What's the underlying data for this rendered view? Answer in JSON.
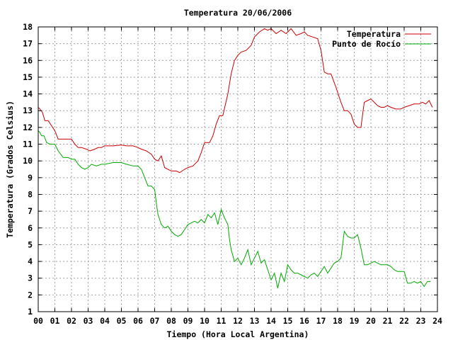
{
  "chart_data": {
    "type": "line",
    "title": "Temperatura 20/06/2006",
    "xlabel": "Tiempo (Hora Local Argentina)",
    "ylabel": "Temperatura (Grados Celsius)",
    "xlim": [
      0,
      24
    ],
    "ylim": [
      1,
      18
    ],
    "x_ticks": [
      "00",
      "01",
      "02",
      "03",
      "04",
      "05",
      "06",
      "07",
      "08",
      "09",
      "10",
      "11",
      "12",
      "13",
      "14",
      "15",
      "16",
      "17",
      "18",
      "19",
      "20",
      "21",
      "22",
      "23",
      "24"
    ],
    "y_ticks": [
      1,
      2,
      3,
      4,
      5,
      6,
      7,
      8,
      9,
      10,
      11,
      12,
      13,
      14,
      15,
      16,
      17,
      18
    ],
    "grid": true,
    "legend_position": "top-right",
    "series": [
      {
        "name": "Temperatura",
        "color": "#cc0000",
        "x": [
          0.0,
          0.1,
          0.25,
          0.4,
          0.6,
          1.0,
          1.2,
          1.5,
          2.0,
          2.2,
          2.4,
          2.6,
          2.9,
          3.1,
          3.4,
          3.6,
          3.8,
          4.0,
          4.5,
          5.0,
          5.3,
          5.7,
          6.0,
          6.2,
          6.5,
          6.8,
          7.0,
          7.2,
          7.4,
          7.6,
          8.0,
          8.3,
          8.5,
          8.8,
          9.0,
          9.3,
          9.6,
          9.8,
          10.0,
          10.3,
          10.5,
          10.7,
          10.9,
          11.1,
          11.4,
          11.6,
          11.8,
          12.0,
          12.2,
          12.5,
          12.8,
          13.0,
          13.3,
          13.6,
          13.8,
          14.0,
          14.3,
          14.6,
          14.9,
          15.2,
          15.5,
          15.8,
          16.0,
          16.2,
          16.5,
          16.8,
          17.0,
          17.2,
          17.4,
          17.6,
          17.9,
          18.2,
          18.4,
          18.6,
          18.8,
          19.0,
          19.2,
          19.4,
          19.6,
          19.8,
          20.0,
          20.2,
          20.4,
          20.6,
          20.8,
          21.0,
          21.2,
          21.5,
          21.8,
          22.0,
          22.3,
          22.6,
          22.9,
          23.1,
          23.3,
          23.5,
          23.7
        ],
        "values": [
          13.2,
          13.1,
          12.9,
          12.4,
          12.4,
          11.8,
          11.3,
          11.3,
          11.3,
          11.0,
          10.8,
          10.8,
          10.7,
          10.6,
          10.7,
          10.8,
          10.8,
          10.9,
          10.9,
          10.95,
          10.9,
          10.9,
          10.8,
          10.7,
          10.6,
          10.4,
          10.1,
          10.0,
          10.3,
          9.6,
          9.4,
          9.4,
          9.3,
          9.5,
          9.6,
          9.7,
          10.0,
          10.5,
          11.1,
          11.1,
          11.5,
          12.2,
          12.7,
          12.7,
          14.0,
          15.2,
          16.0,
          16.3,
          16.5,
          16.6,
          16.9,
          17.4,
          17.7,
          17.9,
          17.8,
          17.9,
          17.6,
          17.8,
          17.6,
          17.9,
          17.5,
          17.6,
          17.7,
          17.5,
          17.4,
          17.3,
          16.6,
          15.3,
          15.2,
          15.2,
          14.4,
          13.5,
          13.0,
          13.0,
          12.8,
          12.2,
          12.0,
          12.0,
          13.5,
          13.6,
          13.7,
          13.5,
          13.3,
          13.2,
          13.2,
          13.3,
          13.2,
          13.1,
          13.1,
          13.2,
          13.3,
          13.4,
          13.4,
          13.5,
          13.4,
          13.6,
          13.2
        ],
        "line": true
      },
      {
        "name": "Punto de Rocío",
        "color": "#00aa00",
        "x": [
          0.0,
          0.1,
          0.2,
          0.35,
          0.5,
          0.7,
          1.0,
          1.2,
          1.5,
          1.8,
          2.0,
          2.2,
          2.4,
          2.6,
          2.8,
          3.0,
          3.2,
          3.5,
          3.8,
          4.0,
          4.5,
          5.0,
          5.3,
          5.7,
          6.0,
          6.2,
          6.4,
          6.6,
          6.8,
          7.0,
          7.1,
          7.2,
          7.4,
          7.6,
          7.8,
          8.0,
          8.2,
          8.4,
          8.6,
          8.8,
          9.0,
          9.2,
          9.4,
          9.6,
          9.8,
          10.0,
          10.2,
          10.4,
          10.6,
          10.8,
          11.0,
          11.2,
          11.4,
          11.5,
          11.6,
          11.8,
          12.0,
          12.2,
          12.4,
          12.6,
          12.8,
          13.0,
          13.2,
          13.4,
          13.6,
          13.8,
          14.0,
          14.2,
          14.4,
          14.6,
          14.8,
          15.0,
          15.2,
          15.4,
          15.6,
          15.8,
          16.0,
          16.2,
          16.4,
          16.6,
          16.8,
          17.0,
          17.2,
          17.4,
          17.6,
          17.8,
          18.0,
          18.2,
          18.4,
          18.6,
          18.8,
          19.0,
          19.2,
          19.4,
          19.6,
          19.8,
          20.0,
          20.2,
          20.4,
          20.6,
          20.8,
          21.0,
          21.2,
          21.4,
          21.6,
          21.8,
          22.0,
          22.2,
          22.4,
          22.6,
          22.8,
          23.0,
          23.2,
          23.4,
          23.6
        ],
        "values": [
          11.8,
          11.7,
          11.5,
          11.5,
          11.1,
          11.0,
          11.0,
          10.6,
          10.2,
          10.2,
          10.1,
          10.1,
          9.8,
          9.6,
          9.5,
          9.6,
          9.8,
          9.7,
          9.8,
          9.8,
          9.9,
          9.9,
          9.8,
          9.7,
          9.7,
          9.5,
          9.0,
          8.5,
          8.5,
          8.3,
          7.5,
          6.8,
          6.2,
          6.0,
          6.1,
          5.8,
          5.6,
          5.5,
          5.6,
          5.9,
          6.2,
          6.3,
          6.4,
          6.3,
          6.5,
          6.3,
          6.8,
          6.6,
          6.9,
          6.2,
          7.1,
          6.6,
          6.2,
          5.3,
          4.7,
          4.0,
          4.2,
          3.8,
          4.2,
          4.7,
          3.8,
          4.2,
          4.6,
          3.9,
          4.1,
          3.5,
          2.9,
          3.3,
          2.4,
          3.3,
          2.8,
          3.8,
          3.5,
          3.3,
          3.3,
          3.2,
          3.1,
          3.0,
          3.2,
          3.3,
          3.1,
          3.4,
          3.7,
          3.3,
          3.6,
          3.9,
          4.0,
          4.2,
          5.8,
          5.5,
          5.4,
          5.4,
          5.6,
          4.8,
          3.8,
          3.8,
          3.9,
          4.0,
          3.9,
          3.8,
          3.8,
          3.8,
          3.7,
          3.5,
          3.4,
          3.4,
          3.4,
          2.7,
          2.7,
          2.8,
          2.7,
          2.8,
          2.5,
          2.8,
          2.8
        ],
        "line": true
      }
    ]
  }
}
